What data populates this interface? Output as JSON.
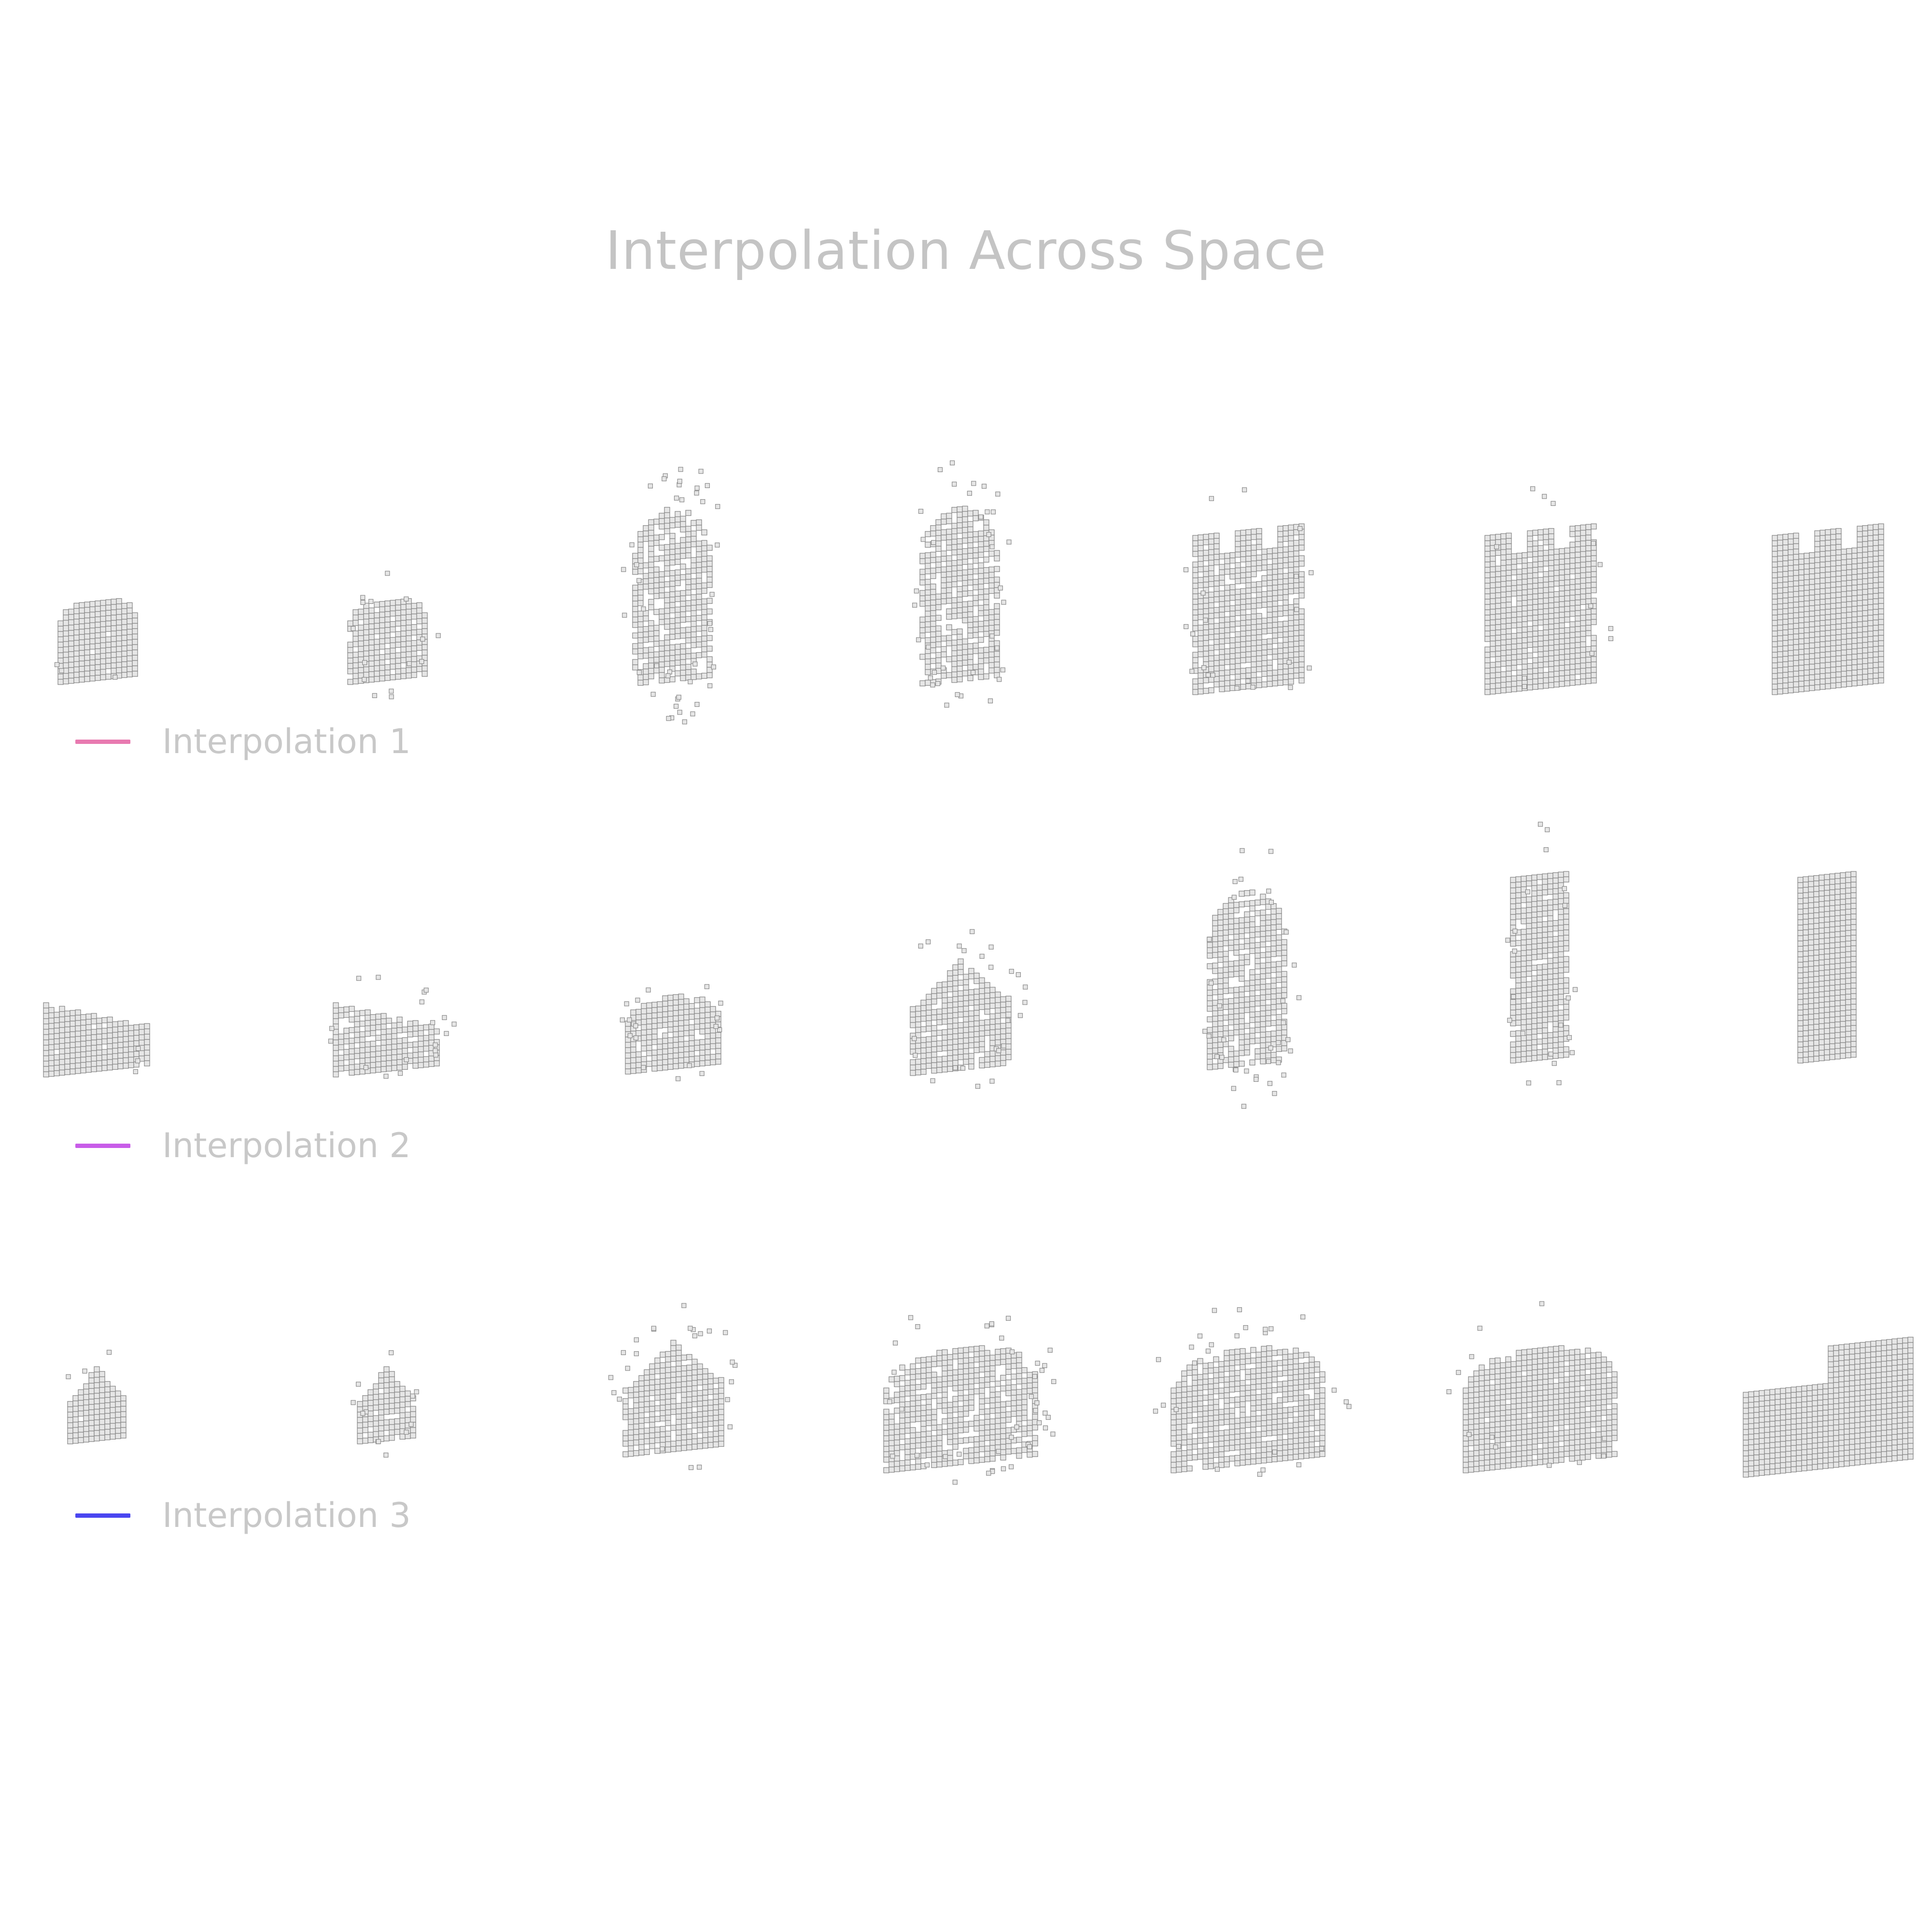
{
  "title": "Interpolation Across Space",
  "legend": [
    {
      "label": "Interpolation 1",
      "color": "#e87ab0"
    },
    {
      "label": "Interpolation 2",
      "color": "#c85ce8"
    },
    {
      "label": "Interpolation 3",
      "color": "#4a46f0"
    }
  ],
  "rows": [
    {
      "name": "interpolation-1",
      "steps": [
        {
          "shape": "lump",
          "scatter": 0.05
        },
        {
          "shape": "lump",
          "scatter": 0.25
        },
        {
          "shape": "tall-blob",
          "scatter": 0.7
        },
        {
          "shape": "tall-blob",
          "scatter": 0.6
        },
        {
          "shape": "arched-slab",
          "scatter": 0.35
        },
        {
          "shape": "arched-slab",
          "scatter": 0.2
        },
        {
          "shape": "arched-slab",
          "scatter": 0.0
        }
      ]
    },
    {
      "name": "interpolation-2",
      "steps": [
        {
          "shape": "low-house",
          "scatter": 0.05
        },
        {
          "shape": "low-house",
          "scatter": 0.3
        },
        {
          "shape": "mound",
          "scatter": 0.3
        },
        {
          "shape": "peaked-mound",
          "scatter": 0.4
        },
        {
          "shape": "tall-blob",
          "scatter": 0.6
        },
        {
          "shape": "tower",
          "scatter": 0.35
        },
        {
          "shape": "tower",
          "scatter": 0.0
        }
      ]
    },
    {
      "name": "interpolation-3",
      "steps": [
        {
          "shape": "small-gable",
          "scatter": 0.05
        },
        {
          "shape": "small-gable",
          "scatter": 0.2
        },
        {
          "shape": "peaked-mound",
          "scatter": 0.4
        },
        {
          "shape": "wide-block",
          "scatter": 0.7
        },
        {
          "shape": "wide-block",
          "scatter": 0.45
        },
        {
          "shape": "wide-block",
          "scatter": 0.2
        },
        {
          "shape": "stepped-block",
          "scatter": 0.0
        }
      ]
    }
  ],
  "colors": {
    "voxel_fill": "#e6e6e6",
    "voxel_edge": "#8a8a8a",
    "title": "#c4c4c4",
    "label": "#c8c8c8"
  }
}
